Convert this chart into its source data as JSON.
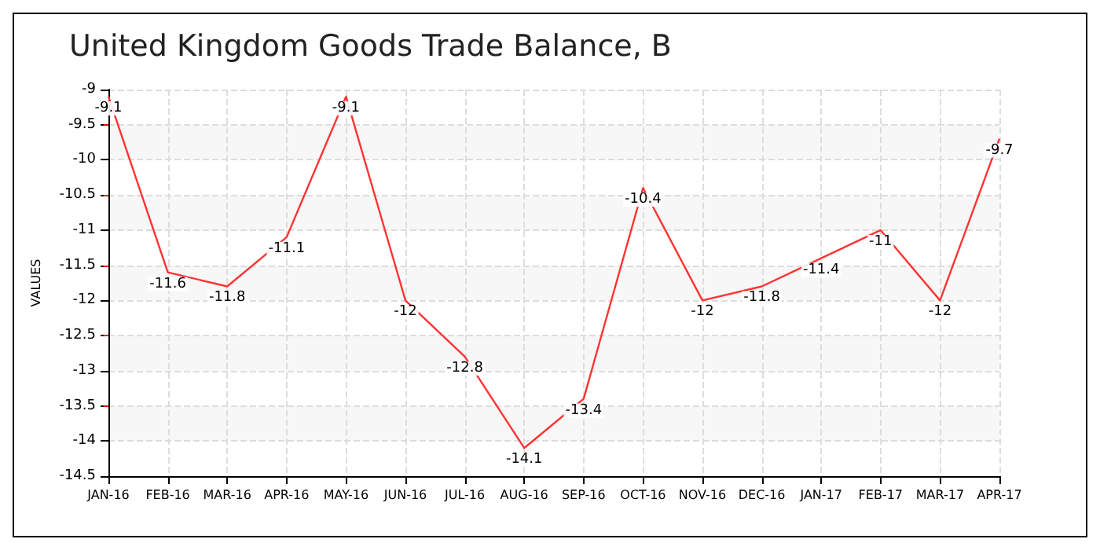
{
  "chart_data": {
    "type": "line",
    "title": "United Kingdom Goods Trade Balance, B",
    "ylabel": "VALUES",
    "categories": [
      "JAN-16",
      "FEB-16",
      "MAR-16",
      "APR-16",
      "MAY-16",
      "JUN-16",
      "JUL-16",
      "AUG-16",
      "SEP-16",
      "OCT-16",
      "NOV-16",
      "DEC-16",
      "JAN-17",
      "FEB-17",
      "MAR-17",
      "APR-17"
    ],
    "series": [
      {
        "color": "#ff3333",
        "values": [
          -9.1,
          -11.6,
          -11.8,
          -11.1,
          -9.1,
          -12,
          -12.8,
          -14.1,
          -13.4,
          -10.4,
          -12,
          -11.8,
          -11.4,
          -11,
          -12,
          -9.7
        ]
      }
    ],
    "ylim": [
      -14.5,
      -9
    ],
    "yticks": [
      -14.5,
      -14,
      -13.5,
      -13,
      -12.5,
      -12,
      -11.5,
      -11,
      -10.5,
      -10,
      -9.5,
      -9
    ],
    "grid": true,
    "data_labels": true,
    "marker": "none",
    "line_style": "solid"
  }
}
